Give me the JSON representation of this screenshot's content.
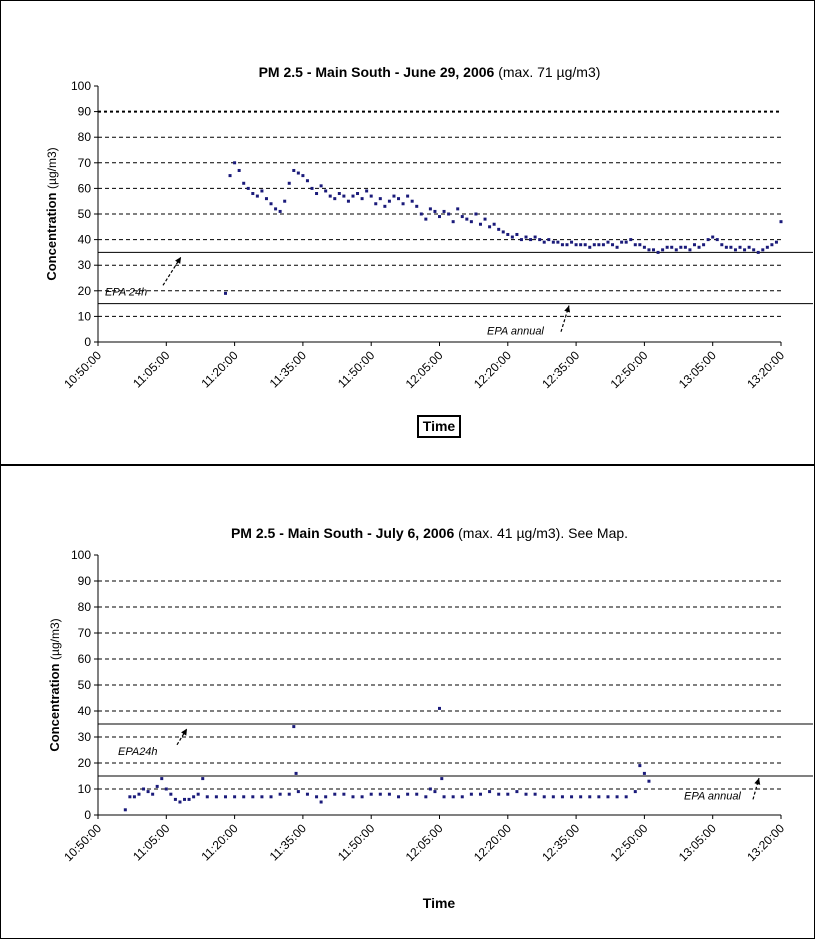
{
  "chart_data": [
    {
      "type": "scatter",
      "title": "PM 2.5 - Main South - June 29, 2006",
      "subtitle": "(max. 71 µg/m3)",
      "xlabel": "Time",
      "ylabel": "Concentration",
      "ylabel_unit": "(µg/m3)",
      "ylim": [
        0,
        100
      ],
      "yticks": [
        "0",
        "10",
        "20",
        "30",
        "40",
        "50",
        "60",
        "70",
        "80",
        "90",
        "100"
      ],
      "xticks": [
        "10:50:00",
        "11:05:00",
        "11:20:00",
        "11:35:00",
        "11:50:00",
        "12:05:00",
        "12:20:00",
        "12:35:00",
        "12:50:00",
        "13:05:00",
        "13:20:00"
      ],
      "grid": "dashed horizontal",
      "reference_lines": [
        {
          "label": "EPA 24h",
          "value": 35
        },
        {
          "label": "EPA annual",
          "value": 15
        }
      ],
      "dotted_line_value": 90,
      "series": [
        {
          "color": "#1a1a7a",
          "points": [
            [
              "11:18:00",
              19
            ],
            [
              "11:19:00",
              65
            ],
            [
              "11:20:00",
              70
            ],
            [
              "11:21:00",
              67
            ],
            [
              "11:22:00",
              62
            ],
            [
              "11:23:00",
              60
            ],
            [
              "11:24:00",
              58
            ],
            [
              "11:25:00",
              57
            ],
            [
              "11:26:00",
              59
            ],
            [
              "11:27:00",
              56
            ],
            [
              "11:28:00",
              54
            ],
            [
              "11:29:00",
              52
            ],
            [
              "11:30:00",
              51
            ],
            [
              "11:31:00",
              55
            ],
            [
              "11:32:00",
              62
            ],
            [
              "11:33:00",
              67
            ],
            [
              "11:34:00",
              66
            ],
            [
              "11:35:00",
              65
            ],
            [
              "11:36:00",
              63
            ],
            [
              "11:37:00",
              60
            ],
            [
              "11:38:00",
              58
            ],
            [
              "11:39:00",
              61
            ],
            [
              "11:40:00",
              59
            ],
            [
              "11:41:00",
              57
            ],
            [
              "11:42:00",
              56
            ],
            [
              "11:43:00",
              58
            ],
            [
              "11:44:00",
              57
            ],
            [
              "11:45:00",
              55
            ],
            [
              "11:46:00",
              57
            ],
            [
              "11:47:00",
              58
            ],
            [
              "11:48:00",
              56
            ],
            [
              "11:49:00",
              59
            ],
            [
              "11:50:00",
              57
            ],
            [
              "11:51:00",
              54
            ],
            [
              "11:52:00",
              56
            ],
            [
              "11:53:00",
              53
            ],
            [
              "11:54:00",
              55
            ],
            [
              "11:55:00",
              57
            ],
            [
              "11:56:00",
              56
            ],
            [
              "11:57:00",
              54
            ],
            [
              "11:58:00",
              57
            ],
            [
              "11:59:00",
              55
            ],
            [
              "12:00:00",
              53
            ],
            [
              "12:01:00",
              50
            ],
            [
              "12:02:00",
              48
            ],
            [
              "12:03:00",
              52
            ],
            [
              "12:04:00",
              51
            ],
            [
              "12:05:00",
              49
            ],
            [
              "12:06:00",
              51
            ],
            [
              "12:07:00",
              50
            ],
            [
              "12:08:00",
              47
            ],
            [
              "12:09:00",
              52
            ],
            [
              "12:10:00",
              49
            ],
            [
              "12:11:00",
              48
            ],
            [
              "12:12:00",
              47
            ],
            [
              "12:13:00",
              50
            ],
            [
              "12:14:00",
              46
            ],
            [
              "12:15:00",
              48
            ],
            [
              "12:16:00",
              45
            ],
            [
              "12:17:00",
              46
            ],
            [
              "12:18:00",
              44
            ],
            [
              "12:19:00",
              43
            ],
            [
              "12:20:00",
              42
            ],
            [
              "12:21:00",
              41
            ],
            [
              "12:22:00",
              42
            ],
            [
              "12:23:00",
              40
            ],
            [
              "12:24:00",
              41
            ],
            [
              "12:25:00",
              40
            ],
            [
              "12:26:00",
              41
            ],
            [
              "12:27:00",
              40
            ],
            [
              "12:28:00",
              39
            ],
            [
              "12:29:00",
              40
            ],
            [
              "12:30:00",
              39
            ],
            [
              "12:31:00",
              39
            ],
            [
              "12:32:00",
              38
            ],
            [
              "12:33:00",
              38
            ],
            [
              "12:34:00",
              39
            ],
            [
              "12:35:00",
              38
            ],
            [
              "12:36:00",
              38
            ],
            [
              "12:37:00",
              38
            ],
            [
              "12:38:00",
              37
            ],
            [
              "12:39:00",
              38
            ],
            [
              "12:40:00",
              38
            ],
            [
              "12:41:00",
              38
            ],
            [
              "12:42:00",
              39
            ],
            [
              "12:43:00",
              38
            ],
            [
              "12:44:00",
              37
            ],
            [
              "12:45:00",
              39
            ],
            [
              "12:46:00",
              39
            ],
            [
              "12:47:00",
              40
            ],
            [
              "12:48:00",
              38
            ],
            [
              "12:49:00",
              38
            ],
            [
              "12:50:00",
              37
            ],
            [
              "12:51:00",
              36
            ],
            [
              "12:52:00",
              36
            ],
            [
              "12:53:00",
              35
            ],
            [
              "12:54:00",
              36
            ],
            [
              "12:55:00",
              37
            ],
            [
              "12:56:00",
              37
            ],
            [
              "12:57:00",
              36
            ],
            [
              "12:58:00",
              37
            ],
            [
              "12:59:00",
              37
            ],
            [
              "13:00:00",
              36
            ],
            [
              "13:01:00",
              38
            ],
            [
              "13:02:00",
              37
            ],
            [
              "13:03:00",
              38
            ],
            [
              "13:04:00",
              40
            ],
            [
              "13:05:00",
              41
            ],
            [
              "13:06:00",
              40
            ],
            [
              "13:07:00",
              38
            ],
            [
              "13:08:00",
              37
            ],
            [
              "13:09:00",
              37
            ],
            [
              "13:10:00",
              36
            ],
            [
              "13:11:00",
              37
            ],
            [
              "13:12:00",
              36
            ],
            [
              "13:13:00",
              37
            ],
            [
              "13:14:00",
              36
            ],
            [
              "13:15:00",
              35
            ],
            [
              "13:16:00",
              36
            ],
            [
              "13:17:00",
              37
            ],
            [
              "13:18:00",
              38
            ],
            [
              "13:19:00",
              39
            ],
            [
              "13:20:00",
              47
            ]
          ]
        }
      ]
    },
    {
      "type": "scatter",
      "title": "PM 2.5 - Main South - July 6, 2006",
      "subtitle": "(max. 41 µg/m3). See Map.",
      "xlabel": "Time",
      "ylabel": "Concentration",
      "ylabel_unit": "(µg/m3)",
      "ylim": [
        0,
        100
      ],
      "yticks": [
        "0",
        "10",
        "20",
        "30",
        "40",
        "50",
        "60",
        "70",
        "80",
        "90",
        "100"
      ],
      "xticks": [
        "10:50:00",
        "11:05:00",
        "11:20:00",
        "11:35:00",
        "11:50:00",
        "12:05:00",
        "12:20:00",
        "12:35:00",
        "12:50:00",
        "13:05:00",
        "13:20:00"
      ],
      "grid": "dashed horizontal",
      "reference_lines": [
        {
          "label": "EPA24h",
          "value": 35
        },
        {
          "label": "EPA annual",
          "value": 15
        }
      ],
      "series": [
        {
          "color": "#1a1a7a",
          "points": [
            [
              "10:56:00",
              2
            ],
            [
              "10:57:00",
              7
            ],
            [
              "10:58:00",
              7
            ],
            [
              "10:59:00",
              8
            ],
            [
              "11:00:00",
              10
            ],
            [
              "11:01:00",
              9
            ],
            [
              "11:02:00",
              8
            ],
            [
              "11:03:00",
              11
            ],
            [
              "11:04:00",
              14
            ],
            [
              "11:05:00",
              10
            ],
            [
              "11:06:00",
              8
            ],
            [
              "11:07:00",
              6
            ],
            [
              "11:08:00",
              5
            ],
            [
              "11:09:00",
              6
            ],
            [
              "11:10:00",
              6
            ],
            [
              "11:11:00",
              7
            ],
            [
              "11:12:00",
              8
            ],
            [
              "11:13:00",
              14
            ],
            [
              "11:14:00",
              7
            ],
            [
              "11:16:00",
              7
            ],
            [
              "11:18:00",
              7
            ],
            [
              "11:20:00",
              7
            ],
            [
              "11:22:00",
              7
            ],
            [
              "11:24:00",
              7
            ],
            [
              "11:26:00",
              7
            ],
            [
              "11:28:00",
              7
            ],
            [
              "11:30:00",
              8
            ],
            [
              "11:32:00",
              8
            ],
            [
              "11:33:00",
              34
            ],
            [
              "11:33:30",
              16
            ],
            [
              "11:34:00",
              9
            ],
            [
              "11:36:00",
              8
            ],
            [
              "11:38:00",
              7
            ],
            [
              "11:39:00",
              5
            ],
            [
              "11:40:00",
              7
            ],
            [
              "11:42:00",
              8
            ],
            [
              "11:44:00",
              8
            ],
            [
              "11:46:00",
              7
            ],
            [
              "11:48:00",
              7
            ],
            [
              "11:50:00",
              8
            ],
            [
              "11:52:00",
              8
            ],
            [
              "11:54:00",
              8
            ],
            [
              "11:56:00",
              7
            ],
            [
              "11:58:00",
              8
            ],
            [
              "12:00:00",
              8
            ],
            [
              "12:02:00",
              7
            ],
            [
              "12:03:00",
              10
            ],
            [
              "12:04:00",
              9
            ],
            [
              "12:05:00",
              41
            ],
            [
              "12:05:30",
              14
            ],
            [
              "12:06:00",
              7
            ],
            [
              "12:08:00",
              7
            ],
            [
              "12:10:00",
              7
            ],
            [
              "12:12:00",
              8
            ],
            [
              "12:14:00",
              8
            ],
            [
              "12:16:00",
              9
            ],
            [
              "12:18:00",
              8
            ],
            [
              "12:20:00",
              8
            ],
            [
              "12:22:00",
              9
            ],
            [
              "12:24:00",
              8
            ],
            [
              "12:26:00",
              8
            ],
            [
              "12:28:00",
              7
            ],
            [
              "12:30:00",
              7
            ],
            [
              "12:32:00",
              7
            ],
            [
              "12:34:00",
              7
            ],
            [
              "12:36:00",
              7
            ],
            [
              "12:38:00",
              7
            ],
            [
              "12:40:00",
              7
            ],
            [
              "12:42:00",
              7
            ],
            [
              "12:44:00",
              7
            ],
            [
              "12:46:00",
              7
            ],
            [
              "12:48:00",
              9
            ],
            [
              "12:49:00",
              19
            ],
            [
              "12:50:00",
              16
            ],
            [
              "12:51:00",
              13
            ]
          ]
        }
      ]
    }
  ]
}
